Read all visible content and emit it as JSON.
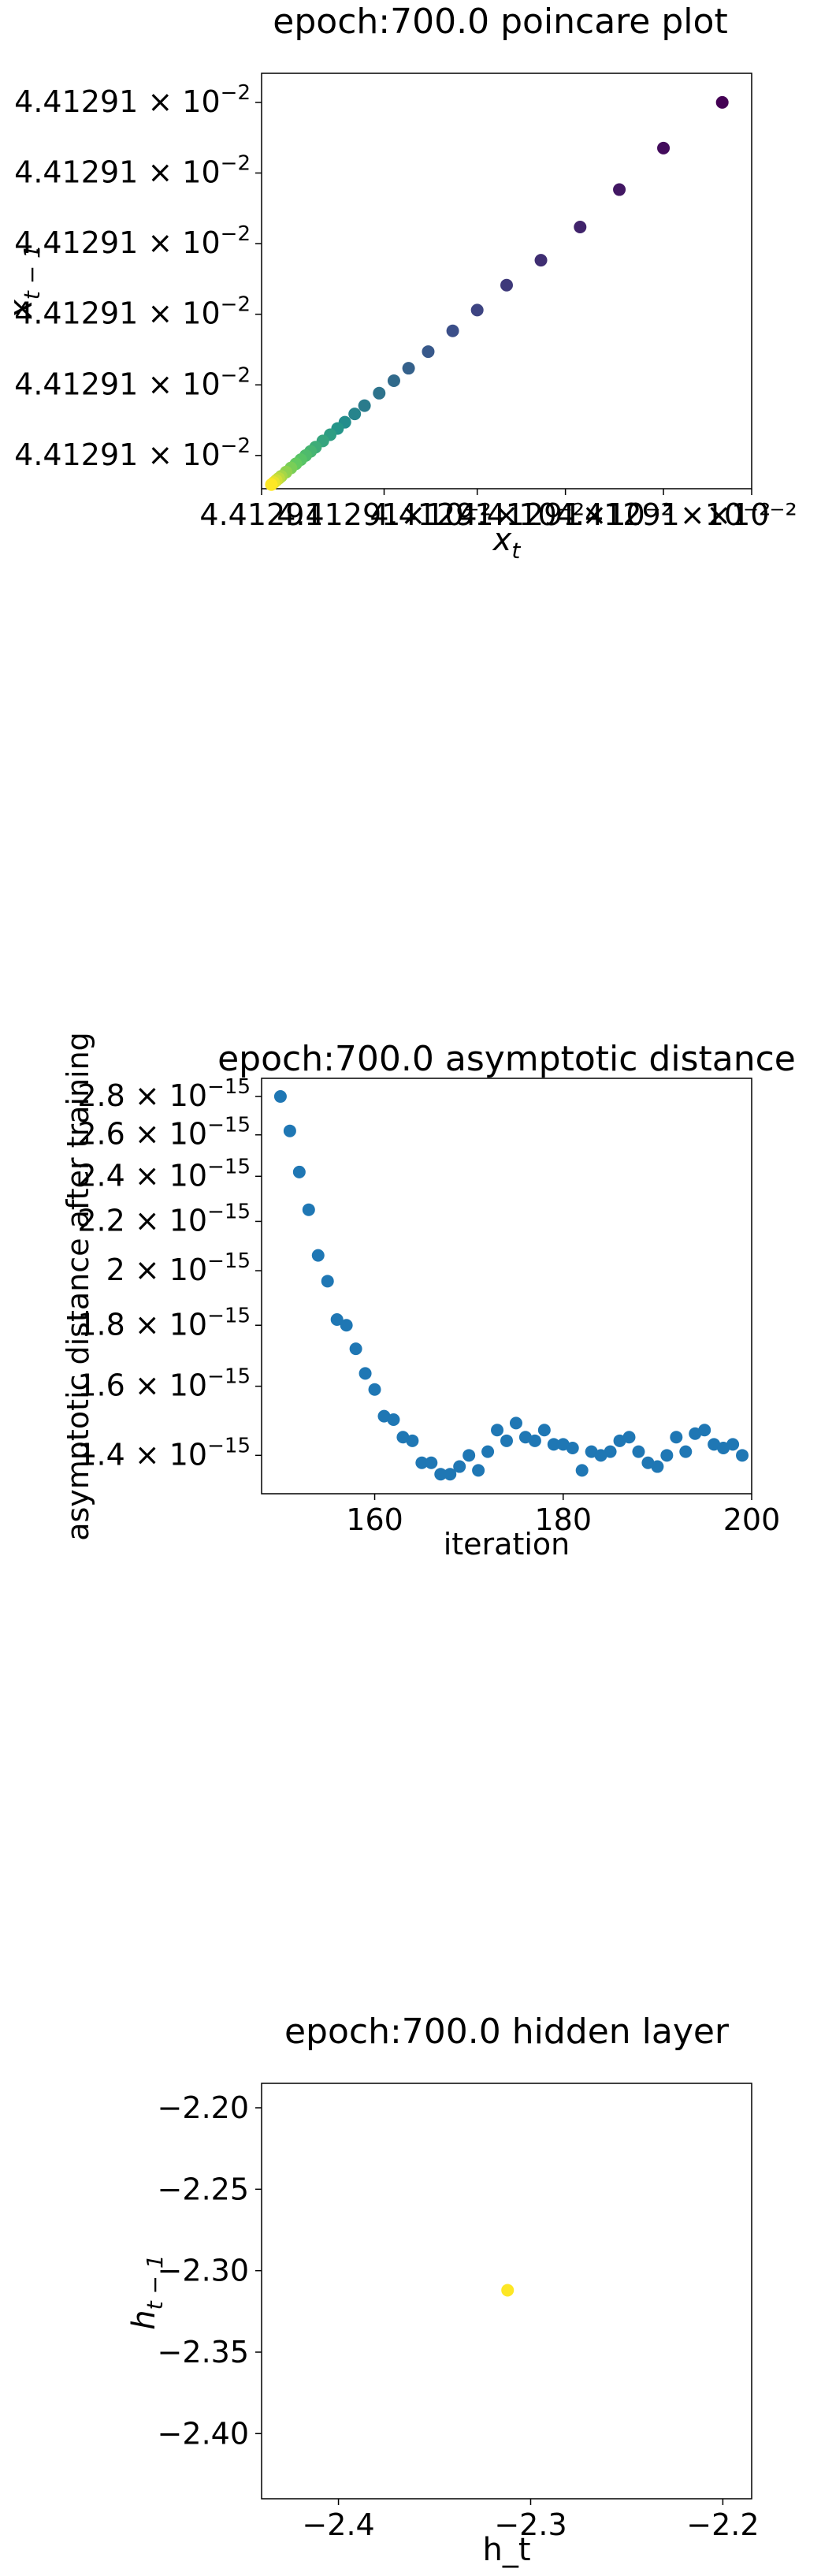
{
  "chart_data": [
    {
      "type": "scatter",
      "title": "epoch:700.0 poincare plot",
      "xlabel_base": "x",
      "xlabel_sub": "t",
      "ylabel_base": "x",
      "ylabel_sub": "t − 1",
      "colormap": "viridis",
      "xlim": [
        0,
        1
      ],
      "ylim": [
        0,
        1
      ],
      "y_ticks": [
        0.08,
        0.25,
        0.42,
        0.59,
        0.76,
        0.93
      ],
      "y_tick_mantissa": "4.41291",
      "y_tick_exponent": "−2",
      "x_tick_labels": [
        {
          "text": "4.41291",
          "pos": 0.0
        },
        {
          "text": "4.41291×10⁻²",
          "pos": 0.25
        },
        {
          "text": "4.41291×10⁻²",
          "pos": 0.44
        },
        {
          "text": "4.41291×10⁻²",
          "pos": 0.62
        },
        {
          "text": "4.41291×10⁻²",
          "pos": 0.82
        },
        {
          "text": "×10⁻²",
          "pos": 1.0
        }
      ],
      "points": [
        [
          0.94,
          0.93
        ],
        [
          0.82,
          0.82
        ],
        [
          0.73,
          0.72
        ],
        [
          0.65,
          0.63
        ],
        [
          0.57,
          0.55
        ],
        [
          0.5,
          0.49
        ],
        [
          0.44,
          0.43
        ],
        [
          0.39,
          0.38
        ],
        [
          0.34,
          0.33
        ],
        [
          0.3,
          0.29
        ],
        [
          0.27,
          0.26
        ],
        [
          0.24,
          0.23
        ],
        [
          0.21,
          0.2
        ],
        [
          0.19,
          0.18
        ],
        [
          0.17,
          0.16
        ],
        [
          0.155,
          0.145
        ],
        [
          0.14,
          0.13
        ],
        [
          0.125,
          0.115
        ],
        [
          0.11,
          0.1
        ],
        [
          0.1,
          0.09
        ],
        [
          0.09,
          0.08
        ],
        [
          0.08,
          0.07
        ],
        [
          0.07,
          0.06
        ],
        [
          0.06,
          0.05
        ],
        [
          0.05,
          0.04
        ],
        [
          0.04,
          0.03
        ],
        [
          0.035,
          0.025
        ],
        [
          0.03,
          0.02
        ],
        [
          0.025,
          0.015
        ],
        [
          0.02,
          0.01
        ]
      ]
    },
    {
      "type": "scatter",
      "title": "epoch:700.0 asymptotic distance",
      "xlabel": "iteration",
      "ylabel": "asymptotic distance after training",
      "color": "#1f77b4",
      "y_scale": "log",
      "xlim": [
        148,
        200
      ],
      "ylim": [
        1.3e-15,
        2.9e-15
      ],
      "x_ticks": [
        160,
        180,
        200
      ],
      "y_ticks": [
        {
          "value": 1.4e-15,
          "mantissa": "1.4",
          "exponent": "−15"
        },
        {
          "value": 1.6e-15,
          "mantissa": "1.6",
          "exponent": "−15"
        },
        {
          "value": 1.8e-15,
          "mantissa": "1.8",
          "exponent": "−15"
        },
        {
          "value": 2e-15,
          "mantissa": "2",
          "exponent": "−15"
        },
        {
          "value": 2.2e-15,
          "mantissa": "2.2",
          "exponent": "−15"
        },
        {
          "value": 2.4e-15,
          "mantissa": "2.4",
          "exponent": "−15"
        },
        {
          "value": 2.6e-15,
          "mantissa": "2.6",
          "exponent": "−15"
        },
        {
          "value": 2.8e-15,
          "mantissa": "2.8",
          "exponent": "−15"
        }
      ],
      "x": [
        150,
        151,
        152,
        153,
        154,
        155,
        156,
        157,
        158,
        159,
        160,
        161,
        162,
        163,
        164,
        165,
        166,
        167,
        168,
        169,
        170,
        171,
        172,
        173,
        174,
        175,
        176,
        177,
        178,
        179,
        180,
        181,
        182,
        183,
        184,
        185,
        186,
        187,
        188,
        189,
        190,
        191,
        192,
        193,
        194,
        195,
        196,
        197,
        198,
        199
      ],
      "y": [
        2.8e-15,
        2.62e-15,
        2.42e-15,
        2.25e-15,
        2.06e-15,
        1.96e-15,
        1.82e-15,
        1.8e-15,
        1.72e-15,
        1.64e-15,
        1.59e-15,
        1.51e-15,
        1.5e-15,
        1.45e-15,
        1.44e-15,
        1.38e-15,
        1.38e-15,
        1.35e-15,
        1.35e-15,
        1.37e-15,
        1.4e-15,
        1.36e-15,
        1.41e-15,
        1.47e-15,
        1.44e-15,
        1.49e-15,
        1.45e-15,
        1.44e-15,
        1.47e-15,
        1.43e-15,
        1.43e-15,
        1.42e-15,
        1.36e-15,
        1.41e-15,
        1.4e-15,
        1.41e-15,
        1.44e-15,
        1.45e-15,
        1.41e-15,
        1.38e-15,
        1.37e-15,
        1.4e-15,
        1.45e-15,
        1.41e-15,
        1.46e-15,
        1.47e-15,
        1.43e-15,
        1.42e-15,
        1.43e-15,
        1.4e-15
      ]
    },
    {
      "type": "scatter",
      "title": "epoch:700.0 hidden layer",
      "xlabel": "h_t",
      "ylabel_base": "h",
      "ylabel_sub": "t − 1",
      "color": "#fde725",
      "xlim": [
        -2.44,
        -2.185
      ],
      "ylim": [
        -2.44,
        -2.185
      ],
      "x_ticks": [
        -2.4,
        -2.3,
        -2.2
      ],
      "y_ticks": [
        -2.4,
        -2.35,
        -2.3,
        -2.25,
        -2.2
      ],
      "x_tick_labels": [
        "−2.4",
        "−2.3",
        "−2.2"
      ],
      "y_tick_labels": [
        "−2.40",
        "−2.35",
        "−2.30",
        "−2.25",
        "−2.20"
      ],
      "points": [
        [
          -2.312,
          -2.312
        ]
      ]
    }
  ]
}
